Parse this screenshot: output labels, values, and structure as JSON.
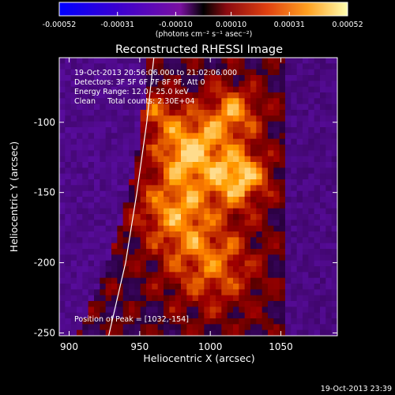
{
  "colorbar": {
    "tick_labels": [
      "-0.00052",
      "-0.00031",
      "-0.00010",
      "0.00010",
      "0.00031",
      "0.00052"
    ],
    "units_html": "(photons cm⁻² s⁻¹ asec⁻²)",
    "range": [
      -0.00052,
      0.00052
    ]
  },
  "title": "Reconstructed RHESSI Image",
  "info": {
    "time": "19-Oct-2013 20:56:06.000 to 21:02:06.000",
    "detectors": "Detectors: 3F 5F 6F 7F 8F 9F, Att 0",
    "energy": "Energy Range: 12.0 - 25.0 keV",
    "clean_total": "Clean     Total counts: 2.30E+04"
  },
  "peak_label": "Position of Peak = [1032,-154]",
  "axes": {
    "xlabel": "Heliocentric X (arcsec)",
    "ylabel": "Heliocentric Y (arcsec)",
    "xlim": [
      893,
      1090
    ],
    "ylim": [
      -252,
      -54
    ],
    "xticks": [
      {
        "label": "900",
        "value": 900
      },
      {
        "label": "950",
        "value": 950
      },
      {
        "label": "1000",
        "value": 1000
      },
      {
        "label": "1050",
        "value": 1050
      }
    ],
    "yticks": [
      {
        "label": "-100",
        "value": -100
      },
      {
        "label": "-150",
        "value": -150
      },
      {
        "label": "-200",
        "value": -200
      },
      {
        "label": "-250",
        "value": -250
      }
    ]
  },
  "limb_curve": [
    [
      960,
      -54
    ],
    [
      955,
      -100
    ],
    [
      948,
      -150
    ],
    [
      940,
      -200
    ],
    [
      928,
      -252
    ]
  ],
  "peak_position": [
    1032,
    -154
  ],
  "timestamp": "19-Oct-2013 23:39",
  "colors": {
    "background": "#000000",
    "foreground": "#ffffff"
  }
}
